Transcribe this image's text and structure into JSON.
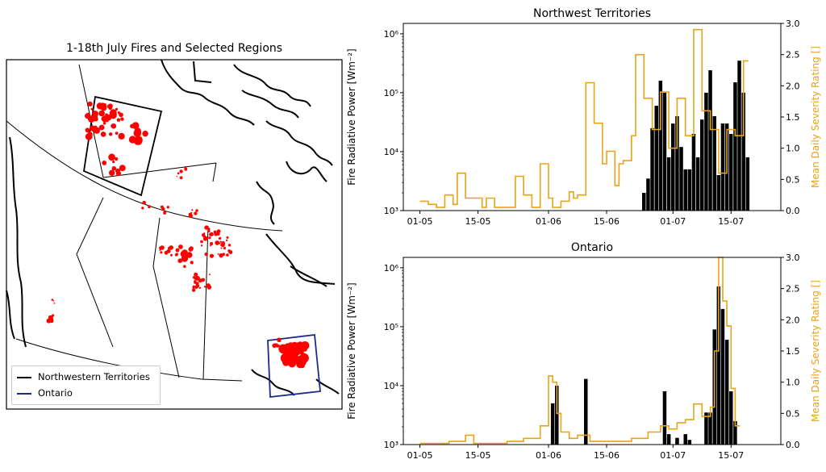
{
  "map": {
    "title": "1-18th July Fires and Selected Regions",
    "legend": [
      {
        "label": "Northwestern Territories",
        "color": "#000000"
      },
      {
        "label": "Ontario",
        "color": "#1f2a8a"
      }
    ],
    "fire_color": "#ff0000"
  },
  "colors": {
    "bars": "#000000",
    "severity_line": "#e8a317",
    "right_axis_text": "#e8a317"
  },
  "chart_data": [
    {
      "type": "bar",
      "title": "Northwest Territories",
      "ylabel": "Fire Radiative Power [Wm⁻²]",
      "ylabel_right": "Mean Daily Severity Rating []",
      "yscale": "log",
      "ylim": [
        1000,
        1500000
      ],
      "yticks": [
        "10³",
        "10⁴",
        "10⁵",
        "10⁶"
      ],
      "ylim_right": [
        0,
        3.0
      ],
      "yticks_right": [
        "0.0",
        "0.5",
        "1.0",
        "1.5",
        "2.0",
        "2.5",
        "3.0"
      ],
      "xticks": [
        "01-05",
        "15-05",
        "01-06",
        "15-06",
        "01-07",
        "15-07"
      ],
      "bars": {
        "dates": [
          "2023-06-24",
          "2023-06-25",
          "2023-06-26",
          "2023-06-27",
          "2023-06-28",
          "2023-06-29",
          "2023-06-30",
          "2023-07-01",
          "2023-07-02",
          "2023-07-03",
          "2023-07-04",
          "2023-07-05",
          "2023-07-06",
          "2023-07-07",
          "2023-07-08",
          "2023-07-09",
          "2023-07-10",
          "2023-07-11",
          "2023-07-12",
          "2023-07-13",
          "2023-07-14",
          "2023-07-15",
          "2023-07-16",
          "2023-07-17",
          "2023-07-18",
          "2023-07-19"
        ],
        "values": [
          2000,
          3500,
          25000,
          60000,
          160000,
          100000,
          8000,
          30000,
          40000,
          12000,
          5000,
          5000,
          20000,
          8000,
          35000,
          100000,
          240000,
          40000,
          4000,
          30000,
          30000,
          20000,
          150000,
          350000,
          100000,
          8000
        ]
      },
      "severity": {
        "dates": [
          "2023-05-01",
          "2023-05-03",
          "2023-05-05",
          "2023-05-07",
          "2023-05-09",
          "2023-05-10",
          "2023-05-12",
          "2023-05-14",
          "2023-05-16",
          "2023-05-17",
          "2023-05-19",
          "2023-05-21",
          "2023-05-24",
          "2023-05-26",
          "2023-05-28",
          "2023-05-30",
          "2023-06-01",
          "2023-06-02",
          "2023-06-04",
          "2023-06-06",
          "2023-06-07",
          "2023-06-08",
          "2023-06-10",
          "2023-06-12",
          "2023-06-14",
          "2023-06-15",
          "2023-06-17",
          "2023-06-18",
          "2023-06-19",
          "2023-06-21",
          "2023-06-22",
          "2023-06-24",
          "2023-06-26",
          "2023-06-28",
          "2023-06-30",
          "2023-07-02",
          "2023-07-04",
          "2023-07-06",
          "2023-07-08",
          "2023-07-10",
          "2023-07-12",
          "2023-07-14",
          "2023-07-16",
          "2023-07-18"
        ],
        "values": [
          0.15,
          0.1,
          0.05,
          0.25,
          0.1,
          0.6,
          0.2,
          0.2,
          0.05,
          0.2,
          0.05,
          0.05,
          0.55,
          0.25,
          0.05,
          0.75,
          0.2,
          0.05,
          0.15,
          0.3,
          0.2,
          0.25,
          2.05,
          1.4,
          0.75,
          0.95,
          0.4,
          0.75,
          0.8,
          1.2,
          2.5,
          1.8,
          1.3,
          1.9,
          1.0,
          1.8,
          1.2,
          2.9,
          1.6,
          1.3,
          0.6,
          1.3,
          1.2,
          2.4
        ]
      }
    },
    {
      "type": "bar",
      "title": "Ontario",
      "ylabel": "Fire Radiative Power [Wm⁻²]",
      "ylabel_right": "Mean Daily Severity Rating []",
      "yscale": "log",
      "ylim": [
        1000,
        1500000
      ],
      "yticks": [
        "10³",
        "10⁴",
        "10⁵",
        "10⁶"
      ],
      "ylim_right": [
        0,
        3.0
      ],
      "yticks_right": [
        "0.0",
        "0.5",
        "1.0",
        "1.5",
        "2.0",
        "2.5",
        "3.0"
      ],
      "xticks": [
        "01-05",
        "15-05",
        "01-06",
        "15-06",
        "01-07",
        "15-07"
      ],
      "bars": {
        "dates": [
          "2023-06-02",
          "2023-06-03",
          "2023-06-10",
          "2023-06-29",
          "2023-06-30",
          "2023-07-02",
          "2023-07-04",
          "2023-07-05",
          "2023-07-09",
          "2023-07-10",
          "2023-07-11",
          "2023-07-12",
          "2023-07-13",
          "2023-07-14",
          "2023-07-15",
          "2023-07-16"
        ],
        "values": [
          5000,
          10000,
          13000,
          8000,
          1500,
          1300,
          1500,
          1200,
          3500,
          3500,
          90000,
          480000,
          200000,
          60000,
          8000,
          2500
        ]
      },
      "severity": {
        "dates": [
          "2023-05-01",
          "2023-05-08",
          "2023-05-12",
          "2023-05-14",
          "2023-05-17",
          "2023-05-22",
          "2023-05-26",
          "2023-05-30",
          "2023-06-01",
          "2023-06-02",
          "2023-06-03",
          "2023-06-04",
          "2023-06-06",
          "2023-06-08",
          "2023-06-11",
          "2023-06-16",
          "2023-06-21",
          "2023-06-25",
          "2023-06-28",
          "2023-06-30",
          "2023-07-02",
          "2023-07-04",
          "2023-07-06",
          "2023-07-08",
          "2023-07-10",
          "2023-07-11",
          "2023-07-12",
          "2023-07-13",
          "2023-07-14",
          "2023-07-15",
          "2023-07-16"
        ],
        "values": [
          0.02,
          0.05,
          0.15,
          0.02,
          0.02,
          0.05,
          0.1,
          0.3,
          1.1,
          1.0,
          0.5,
          0.2,
          0.1,
          0.15,
          0.05,
          0.05,
          0.1,
          0.2,
          0.3,
          0.25,
          0.35,
          0.4,
          0.65,
          0.45,
          0.6,
          1.5,
          3.0,
          2.3,
          1.9,
          0.9,
          0.3
        ]
      }
    }
  ]
}
